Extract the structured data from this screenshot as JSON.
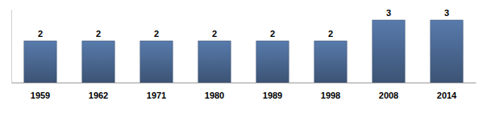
{
  "chart_data": {
    "type": "bar",
    "categories": [
      "1959",
      "1962",
      "1971",
      "1980",
      "1989",
      "1998",
      "2008",
      "2014"
    ],
    "values": [
      2,
      2,
      2,
      2,
      2,
      2,
      3,
      3
    ],
    "color": "#4a6790",
    "ylim": [
      0,
      3.5
    ],
    "yticks": [],
    "data_labels": true,
    "tick_labels": "x",
    "grid": false
  }
}
